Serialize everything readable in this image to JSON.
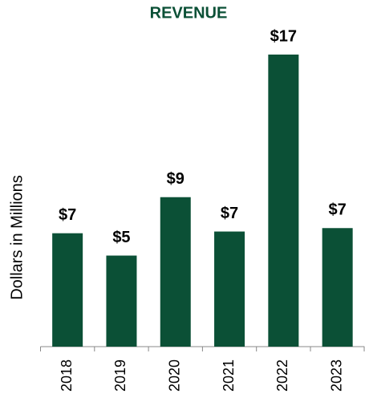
{
  "chart_data": {
    "type": "bar",
    "title": "REVENUE",
    "y_label": "Dollars in Millions",
    "categories": [
      "2018",
      "2019",
      "2020",
      "2021",
      "2022",
      "2023"
    ],
    "values": [
      6.6,
      5.3,
      8.7,
      6.7,
      17,
      6.9
    ],
    "value_labels": [
      "$7",
      "$5",
      "$9",
      "$7",
      "$17",
      "$7"
    ],
    "color": "#0b5036"
  }
}
